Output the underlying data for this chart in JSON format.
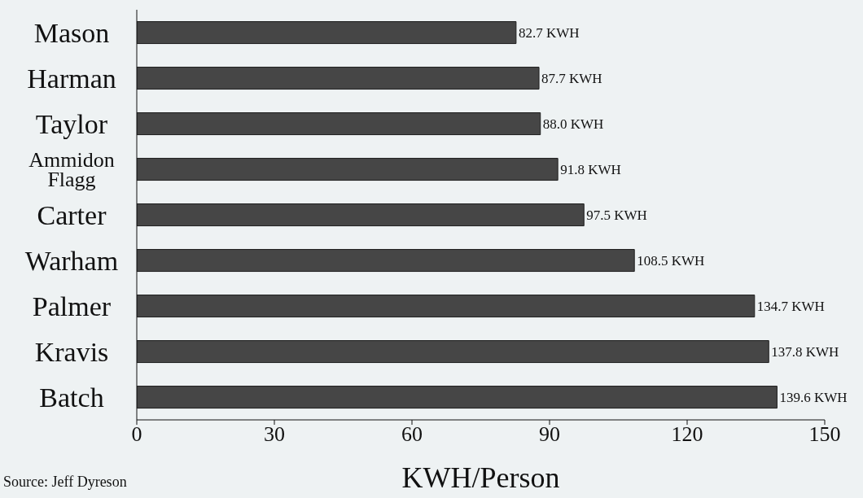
{
  "chart_data": {
    "type": "bar",
    "orientation": "horizontal",
    "categories": [
      "Mason",
      "Harman",
      "Taylor",
      "Ammidon Flagg",
      "Carter",
      "Warham",
      "Palmer",
      "Kravis",
      "Batch"
    ],
    "values": [
      82.7,
      87.7,
      88.0,
      91.8,
      97.5,
      108.5,
      134.7,
      137.8,
      139.6
    ],
    "value_labels": [
      "82.7 KWH",
      "87.7 KWH",
      "88.0 KWH",
      "91.8 KWH",
      "97.5 KWH",
      "108.5 KWH",
      "134.7 KWH",
      "137.8 KWH",
      "139.6 KWH"
    ],
    "color": "#464646",
    "xlim": [
      0,
      150
    ],
    "xticks": [
      0,
      30,
      60,
      90,
      120,
      150
    ],
    "xlabel": "KWH/Person",
    "annotations": [
      "Source: Jeff Dyreson"
    ]
  }
}
